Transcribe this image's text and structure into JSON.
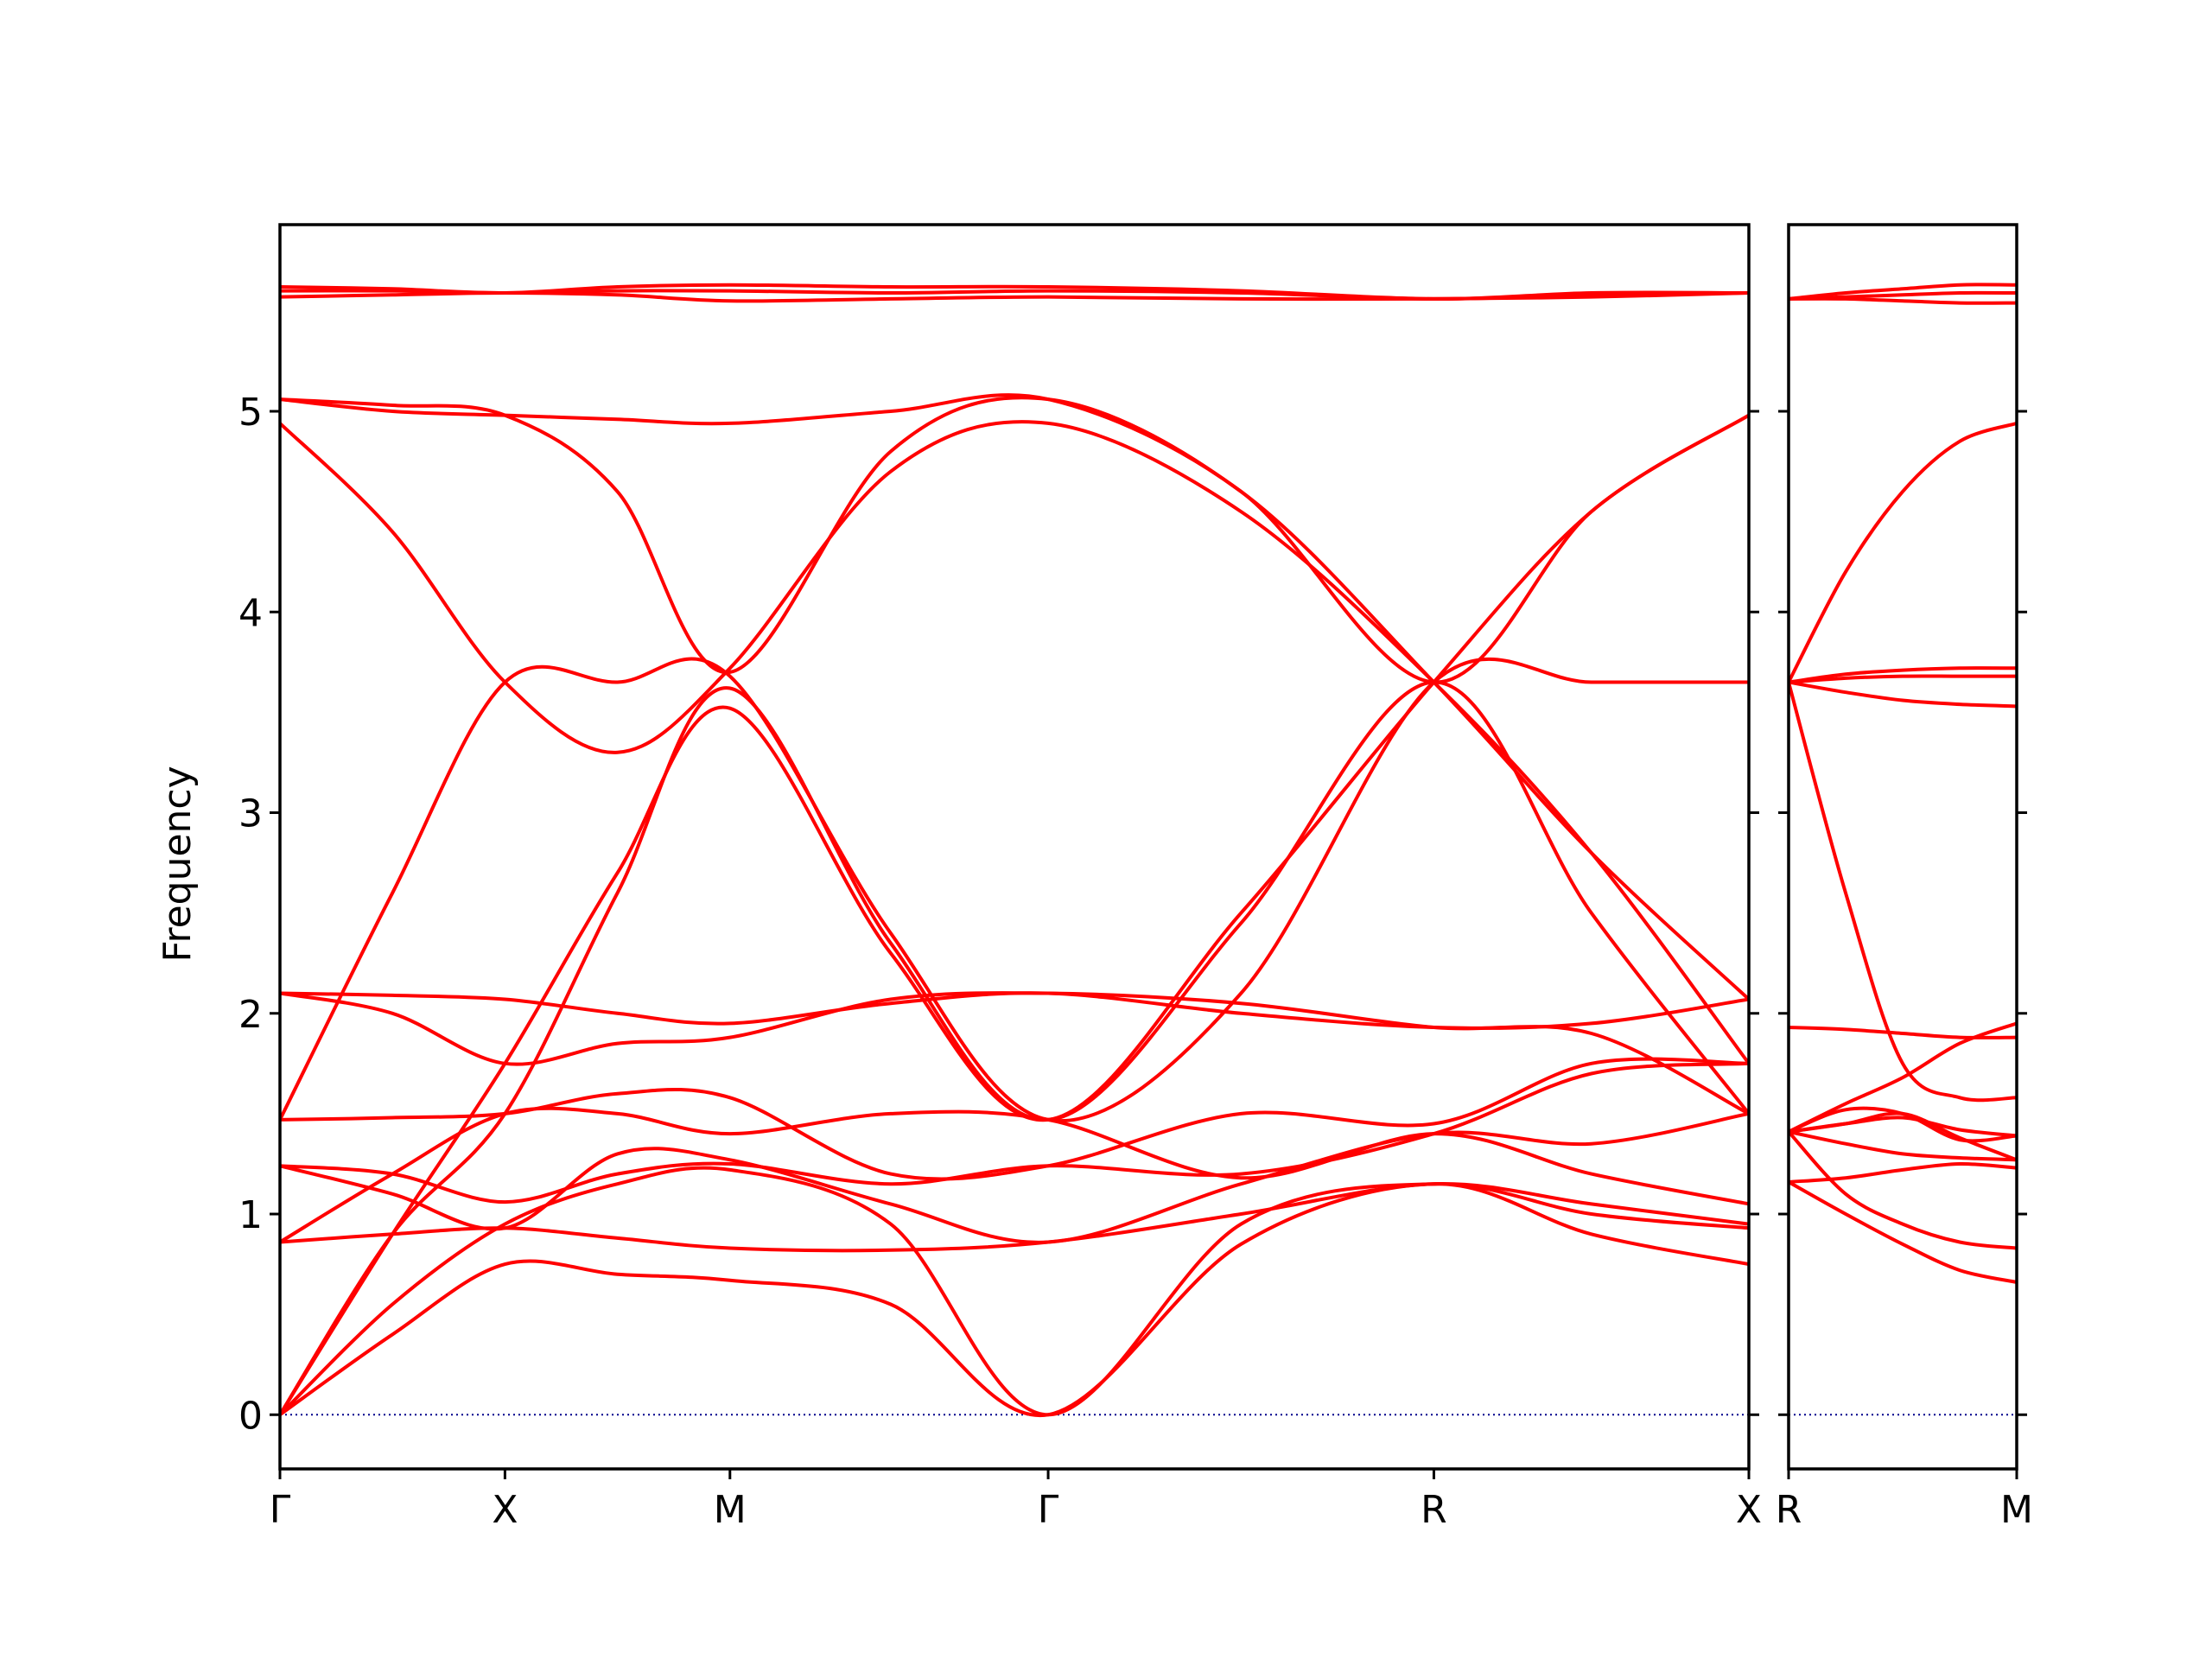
{
  "chart_data": {
    "type": "line",
    "ylabel": "Frequency",
    "ylim": [
      -0.27,
      5.93
    ],
    "yticks": [
      0,
      1,
      2,
      3,
      4,
      5
    ],
    "colors": {
      "bands": "#ff0000",
      "zero_line": "#00008b",
      "frame": "#000000"
    },
    "grid": false,
    "panels": [
      {
        "name": "main",
        "xlim": [
          0,
          4.57
        ],
        "ticks": [
          {
            "label": "Γ",
            "x": 0
          },
          {
            "label": "X",
            "x": 0.7
          },
          {
            "label": "M",
            "x": 1.4
          },
          {
            "label": "Γ",
            "x": 2.39
          },
          {
            "label": "R",
            "x": 3.59
          },
          {
            "label": "X",
            "x": 4.57
          }
        ],
        "x": [
          0,
          0.35,
          0.7,
          1.05,
          1.4,
          1.9,
          2.39,
          2.99,
          3.59,
          4.08,
          4.57
        ],
        "series": [
          {
            "values": [
              0,
              0.4,
              0.75,
              0.7,
              0.67,
              0.55,
              0,
              0.85,
              1.15,
              0.9,
              0.75
            ]
          },
          {
            "values": [
              0,
              0.55,
              0.95,
              1.15,
              1.22,
              0.95,
              0,
              0.95,
              1.15,
              1.0,
              0.93
            ]
          },
          {
            "values": [
              0.86,
              0.9,
              0.93,
              0.88,
              0.83,
              0.82,
              0.86,
              1.0,
              1.15,
              1.05,
              0.95
            ]
          },
          {
            "values": [
              0.86,
              1.2,
              1.5,
              1.5,
              1.4,
              1.5,
              1.47,
              1.18,
              1.4,
              1.2,
              1.05
            ]
          },
          {
            "values": [
              1.24,
              1.1,
              0.93,
              1.3,
              1.27,
              1.05,
              0.86,
              1.15,
              1.4,
              1.35,
              1.5
            ]
          },
          {
            "values": [
              1.24,
              1.2,
              1.06,
              1.2,
              1.25,
              1.15,
              1.24,
              1.2,
              1.4,
              1.7,
              1.75
            ]
          },
          {
            "values": [
              1.47,
              1.48,
              1.5,
              1.6,
              1.58,
              1.2,
              1.24,
              1.5,
              1.45,
              1.75,
              1.75
            ]
          },
          {
            "values": [
              1.47,
              2.6,
              3.65,
              3.65,
              3.68,
              2.4,
              1.47,
              2.1,
              3.65,
              3.65,
              3.65
            ]
          },
          {
            "values": [
              2.1,
              2.09,
              2.07,
              2.0,
              1.95,
              2.05,
              2.1,
              2.0,
              1.93,
              1.95,
              2.07
            ]
          },
          {
            "values": [
              2.1,
              2.0,
              1.75,
              1.85,
              1.88,
              2.07,
              2.1,
              2.05,
              1.93,
              1.9,
              1.5
            ]
          },
          {
            "values": [
              0,
              0.9,
              1.75,
              2.7,
              3.52,
              2.3,
              1.47,
              2.5,
              3.65,
              4.5,
              4.98
            ]
          },
          {
            "values": [
              0,
              0.9,
              1.5,
              2.6,
              3.62,
              2.35,
              1.47,
              2.45,
              3.65,
              2.5,
              1.5
            ]
          },
          {
            "values": [
              4.94,
              4.4,
              3.65,
              3.3,
              3.72,
              4.7,
              4.94,
              4.5,
              3.65,
              2.8,
              1.75
            ]
          },
          {
            "values": [
              5.06,
              5.0,
              4.98,
              4.96,
              4.94,
              5.0,
              5.06,
              4.6,
              3.65,
              2.8,
              2.07
            ]
          },
          {
            "values": [
              5.06,
              5.03,
              4.98,
              4.6,
              3.7,
              4.8,
              5.06,
              4.6,
              3.65,
              4.5,
              4.98
            ]
          },
          {
            "values": [
              5.57,
              5.58,
              5.59,
              5.58,
              5.55,
              5.56,
              5.57,
              5.56,
              5.56,
              5.57,
              5.59
            ]
          },
          {
            "values": [
              5.6,
              5.6,
              5.59,
              5.6,
              5.6,
              5.59,
              5.6,
              5.59,
              5.56,
              5.58,
              5.59
            ]
          },
          {
            "values": [
              5.62,
              5.61,
              5.59,
              5.62,
              5.63,
              5.62,
              5.62,
              5.6,
              5.56,
              5.59,
              5.59
            ]
          }
        ]
      },
      {
        "name": "right",
        "xlim": [
          0,
          0.7
        ],
        "ticks": [
          {
            "label": "R",
            "x": 0
          },
          {
            "label": "M",
            "x": 0.7
          }
        ],
        "x": [
          0,
          0.175,
          0.35,
          0.525,
          0.7
        ],
        "series": [
          {
            "values": [
              1.16,
              1.0,
              0.85,
              0.72,
              0.66
            ]
          },
          {
            "values": [
              1.41,
              1.1,
              0.95,
              0.86,
              0.83
            ]
          },
          {
            "values": [
              1.16,
              1.18,
              1.22,
              1.25,
              1.23
            ]
          },
          {
            "values": [
              1.41,
              1.35,
              1.3,
              1.28,
              1.27
            ]
          },
          {
            "values": [
              1.41,
              1.45,
              1.5,
              1.38,
              1.27
            ]
          },
          {
            "values": [
              1.41,
              1.45,
              1.48,
              1.42,
              1.39
            ]
          },
          {
            "values": [
              1.41,
              1.52,
              1.5,
              1.37,
              1.39
            ]
          },
          {
            "values": [
              1.41,
              1.55,
              1.68,
              1.85,
              1.95
            ]
          },
          {
            "values": [
              1.93,
              1.92,
              1.9,
              1.88,
              1.88
            ]
          },
          {
            "values": [
              3.65,
              2.6,
              1.75,
              1.58,
              1.58
            ]
          },
          {
            "values": [
              3.65,
              3.6,
              3.56,
              3.54,
              3.53
            ]
          },
          {
            "values": [
              3.65,
              3.67,
              3.68,
              3.68,
              3.68
            ]
          },
          {
            "values": [
              3.65,
              3.69,
              3.71,
              3.72,
              3.72
            ]
          },
          {
            "values": [
              3.65,
              4.2,
              4.6,
              4.85,
              4.94
            ]
          },
          {
            "values": [
              5.56,
              5.56,
              5.55,
              5.54,
              5.54
            ]
          },
          {
            "values": [
              5.56,
              5.57,
              5.58,
              5.59,
              5.59
            ]
          },
          {
            "values": [
              5.56,
              5.59,
              5.61,
              5.63,
              5.63
            ]
          }
        ]
      }
    ]
  }
}
